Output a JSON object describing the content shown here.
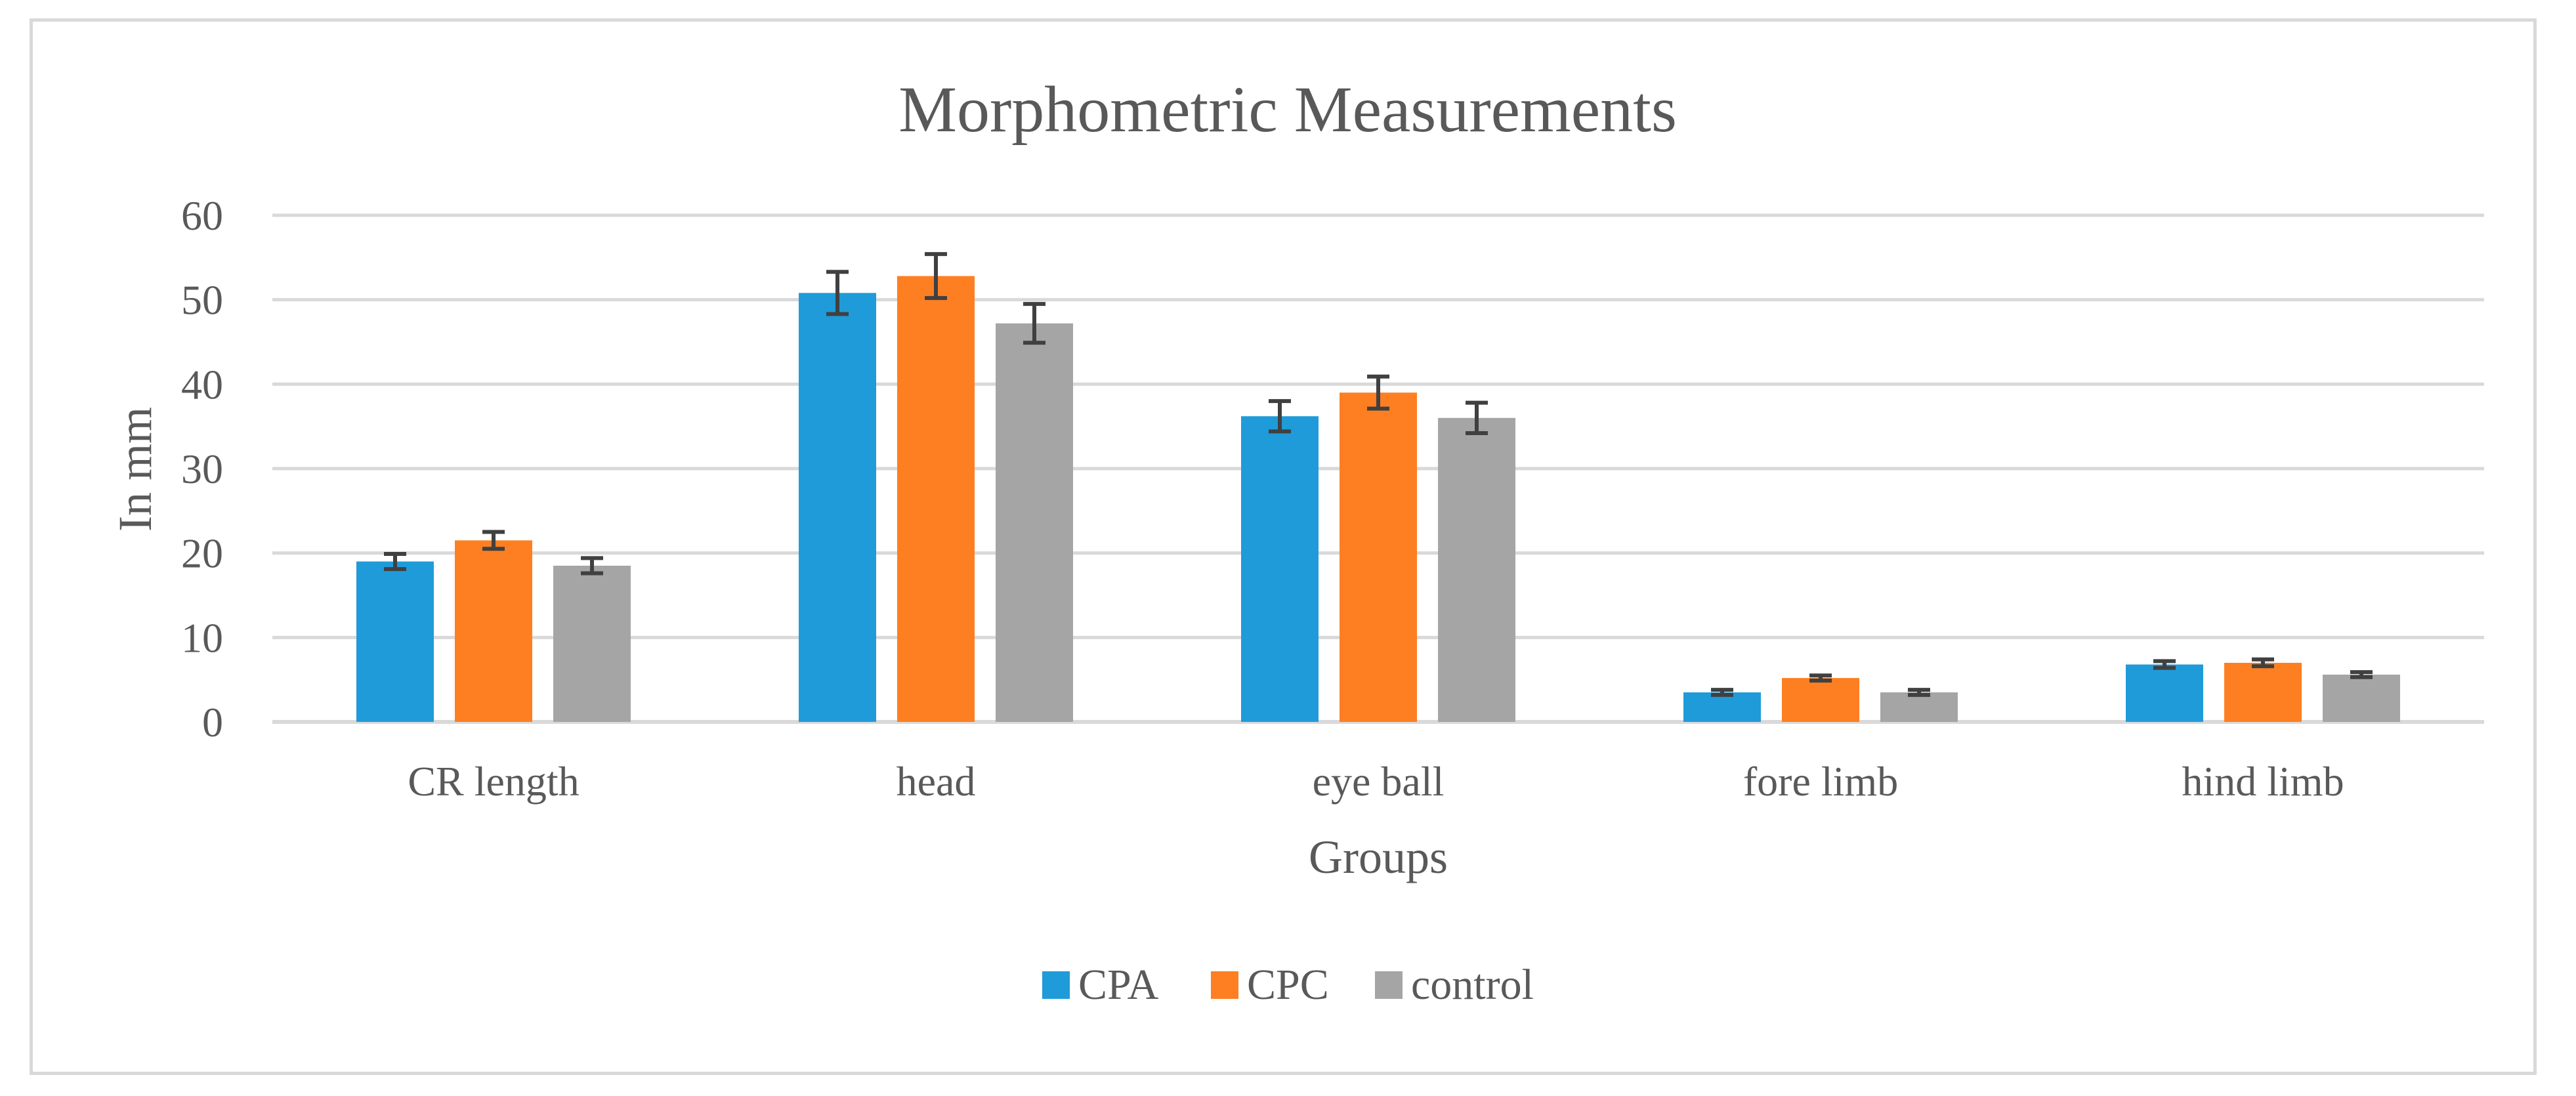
{
  "chart_data": {
    "type": "bar",
    "title": "Morphometric Measurements",
    "xlabel": "Groups",
    "ylabel": "In mm",
    "ylim": [
      0,
      60
    ],
    "yticks": [
      0,
      10,
      20,
      30,
      40,
      50,
      60
    ],
    "grid": true,
    "legend_position": "bottom",
    "categories": [
      "CR length",
      "head",
      "eye ball",
      "fore limb",
      "hind limb"
    ],
    "series": [
      {
        "name": "CPA",
        "color": "#1f9bd9",
        "values": [
          19.0,
          50.8,
          36.2,
          3.5,
          6.8
        ],
        "errors": [
          0.9,
          2.5,
          1.8,
          0.3,
          0.4
        ]
      },
      {
        "name": "CPC",
        "color": "#fd7f22",
        "values": [
          21.5,
          52.8,
          39.0,
          5.2,
          7.0
        ],
        "errors": [
          1.0,
          2.6,
          1.9,
          0.3,
          0.4
        ]
      },
      {
        "name": "control",
        "color": "#a5a5a5",
        "values": [
          18.5,
          47.2,
          36.0,
          3.5,
          5.6
        ],
        "errors": [
          0.9,
          2.3,
          1.8,
          0.3,
          0.3
        ]
      }
    ],
    "error_bar_color": "#404040",
    "grid_color": "#d9d9d9",
    "axis_color": "#d9d9d9"
  }
}
